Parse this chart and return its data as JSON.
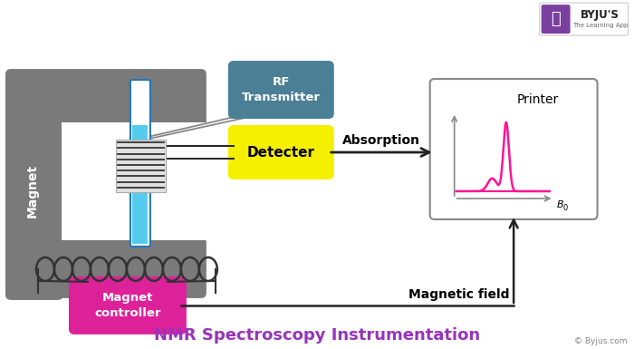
{
  "title": "NMR Spectroscopy Instrumentation",
  "title_color": "#9933bb",
  "title_fontsize": 13,
  "bg_color": "#ffffff",
  "magnet_color": "#7a7a7a",
  "rf_box_color": "#4a7f96",
  "rf_text": "RF\nTransmitter",
  "detector_color": "#f5f000",
  "detector_text": "Detecter",
  "detector_text_color": "#000000",
  "magnet_controller_color": "#dd2299",
  "magnet_controller_text": "Magnet\ncontroller",
  "magnet_text": "Magnet",
  "absorption_text": "Absorption",
  "magnetic_field_text": "Magnetic field",
  "printer_text": "Printer",
  "b0_text": "B",
  "b0_sub": "0",
  "copyright_text": "© Byjus.com",
  "arrow_color": "#222222",
  "spec_axis_color": "#888888",
  "peak_color": "#ff1493",
  "coil_color": "#333333",
  "wire_color": "#888888",
  "logo_purple": "#7b3fa0"
}
